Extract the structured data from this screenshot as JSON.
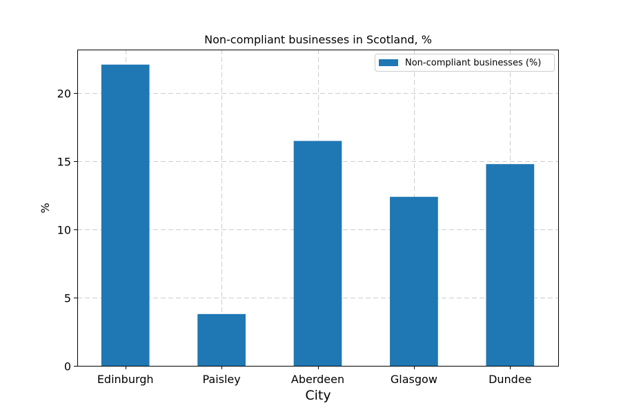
{
  "chart_data": {
    "type": "bar",
    "title": "Non-compliant businesses in Scotland, %",
    "xlabel": "City",
    "ylabel": "%",
    "categories": [
      "Edinburgh",
      "Paisley",
      "Aberdeen",
      "Glasgow",
      "Dundee"
    ],
    "series": [
      {
        "name": "Non-compliant businesses (%)",
        "values": [
          22.1,
          3.8,
          16.5,
          12.4,
          14.8
        ],
        "color": "#1f77b4"
      }
    ],
    "ylim": [
      0,
      23.2
    ],
    "yticks": [
      0,
      5,
      10,
      15,
      20
    ],
    "grid": true,
    "legend_position": "top-right"
  }
}
